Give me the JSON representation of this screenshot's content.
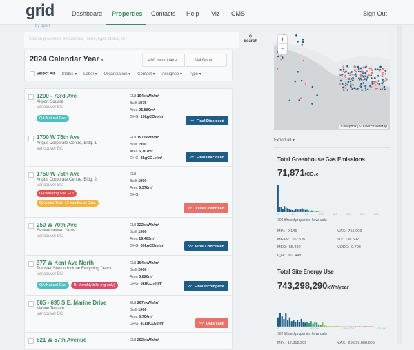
{
  "header": {
    "logo": "grid",
    "logo_sub": "by open",
    "nav": [
      "Dashboard",
      "Properties",
      "Contacts",
      "Help",
      "Viz",
      "CMS"
    ],
    "active": "Properties",
    "sign_out": "Sign Out"
  },
  "search": {
    "placeholder": "Search properties by address, name, type, status, id",
    "button": "Search",
    "icon": "search-icon"
  },
  "period": {
    "title": "2024 Calendar Year",
    "incomplete": "490 Incomplete",
    "done": "1244 Done"
  },
  "filters": {
    "select_all": "Select All",
    "items": [
      "Status",
      "Label",
      "Organization",
      "Contact",
      "Assignee",
      "Type"
    ]
  },
  "colors": {
    "green": "#3e8a5e",
    "final": "#1f5d87",
    "issues": "#e8736b",
    "teal": "#4fbfbf",
    "red": "#e05252",
    "orange": "#f2b441",
    "pink": "#d94c6a"
  },
  "properties": [
    {
      "name": "1200 - 73rd Ave",
      "building": "Airport Square",
      "city": "Vancouver BC",
      "eui": "194ekWh/m²",
      "built": "1975",
      "area": "25,880m²",
      "ghgi": "19kgCO₂e/m²",
      "tags": [
        [
          {
            "text": "QA:Natural Gas",
            "color": "#4fbfbf"
          }
        ]
      ],
      "status": "Final Disclosed",
      "status_color": "#1f5d87"
    },
    {
      "name": "1700 W 75th Ave",
      "building": "Angus Corporate Centre, Bldg. 1",
      "city": "Vancouver BC",
      "eui": "197ekWh/m²",
      "built": "1990",
      "area": "5,707m²",
      "ghgi": "8kgCO₂e/m²",
      "tags": [],
      "status": "Final Disclosed",
      "status_color": "#1f5d87"
    },
    {
      "name": "1750 W 75th Ave",
      "building": "Angus Corporate Centre, Bldg. 2",
      "city": "Vancouver BC",
      "eui": "",
      "built": "1990",
      "area": "6,378m²",
      "ghgi": "",
      "tags": [
        [
          {
            "text": "QA:Missing Site EUI",
            "color": "#e05252"
          }
        ],
        [
          {
            "text": "QA:Less Than 12 months of Data",
            "color": "#f2b441"
          }
        ]
      ],
      "status": "Issues Identified",
      "status_color": "#e8736b"
    },
    {
      "name": "250 W 70th Ave",
      "building": "Saskatchewan Yards",
      "city": "Vancouver BC",
      "eui": "322ekWh/m²",
      "built": "1966",
      "area": "19,463m²",
      "ghgi": "39kgCO₂e/m²",
      "tags": [],
      "status": "Final Concealed",
      "status_color": "#1f5d87"
    },
    {
      "name": "377 W Kent Ave North",
      "building": "Transfer Station include Recycling Depot",
      "city": "Vancouver BC",
      "eui": "164ekWh/m²",
      "built": "2008",
      "area": "6,826m²",
      "ghgi": "5kgCO₂e/m²",
      "tags": [
        [
          {
            "text": "QA:Natural Gas",
            "color": "#4fbfbf"
          },
          {
            "text": "Bi-Monthly bills (ng only)",
            "color": "#d94c6a"
          }
        ]
      ],
      "status": "Final Incomplete",
      "status_color": "#1f5d87"
    },
    {
      "name": "605 - 695 S.E. Marine Drive",
      "building": "Marine Terrace",
      "city": "Vancouver BC",
      "eui": "267ekWh/m²",
      "built": "1966",
      "area": "5,704m²",
      "ghgi": "41kgCO₂e/m²",
      "tags": [],
      "status": "Data Valid",
      "status_color": "#e8736b"
    },
    {
      "name": "621 W 57th Avenue",
      "building": "",
      "city": "",
      "eui": "292ekWh/m²",
      "built": "",
      "area": "",
      "ghgi": "",
      "tags": [],
      "status": "",
      "status_color": ""
    }
  ],
  "labels": {
    "eui": "EUI",
    "built": "Built",
    "area": "Area",
    "ghgi": "GHGI"
  },
  "map": {
    "attribution": "© Mapbox | © OpenStreetMap",
    "zoom_in": "+",
    "zoom_out": "−"
  },
  "export": "Export all",
  "chart_data": [
    {
      "type": "bar",
      "title": "Total Greenhouse Gas Emissions",
      "total": "71,871",
      "unit": "tCO₂e",
      "tick_labels": [
        "0",
        "40",
        "80",
        "120",
        "160",
        "200",
        "240",
        "280"
      ],
      "values": [
        100,
        20,
        18,
        12,
        22,
        16,
        14,
        10,
        8,
        8,
        6,
        10,
        12,
        9,
        12,
        14,
        10,
        8,
        9,
        6,
        5,
        6,
        4,
        4,
        5,
        4,
        3,
        3,
        3,
        2,
        2,
        2,
        2,
        2,
        1,
        2,
        1,
        1,
        2,
        1,
        1,
        1,
        2,
        1,
        1,
        1,
        1,
        1,
        1,
        2,
        1,
        1,
        1,
        1,
        1,
        2,
        1,
        1,
        2,
        1
      ],
      "note": "701 filtered properties have data",
      "stats": [
        [
          "MIN:",
          "0.146"
        ],
        [
          "MAX:",
          "755.006"
        ],
        [
          "MEAN:",
          "102.526"
        ],
        [
          "SD:",
          "136.692"
        ],
        [
          "MED:",
          "55.492"
        ],
        [
          "MODE:",
          "0.798"
        ],
        [
          "IQR:",
          "107.448"
        ]
      ]
    },
    {
      "type": "bar",
      "title": "Total Site Energy Use",
      "total": "743,298,290",
      "unit": "kWh/year",
      "tick_labels": [
        "0",
        "800,000",
        "1,600,000",
        "2,400,000"
      ],
      "values": [
        60,
        90,
        70,
        50,
        85,
        40,
        60,
        35,
        40,
        30,
        45,
        28,
        50,
        30,
        25,
        30,
        22,
        35,
        20,
        30,
        25,
        15,
        12,
        30,
        8,
        5,
        4,
        4,
        3,
        3,
        4,
        3,
        3,
        2,
        3,
        2,
        2,
        3,
        2,
        2,
        3,
        2,
        3,
        2,
        2,
        3,
        2,
        2,
        3,
        2
      ],
      "note": "701 filtered properties have data",
      "stats": [
        [
          "MIN:",
          "12,318.909"
        ],
        [
          "MAX:",
          "23,899,608.605"
        ]
      ]
    }
  ]
}
